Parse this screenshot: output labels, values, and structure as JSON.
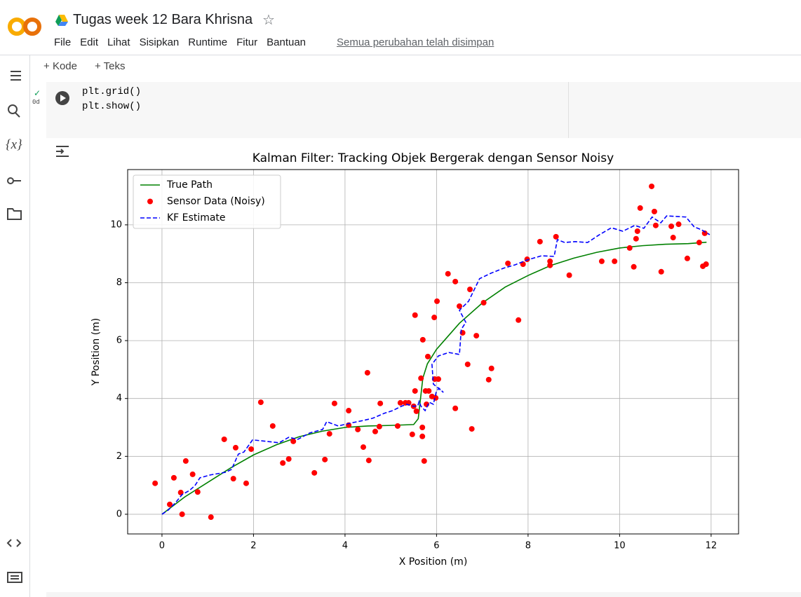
{
  "header": {
    "title": "Tugas week 12 Bara Khrisna",
    "menu": [
      "File",
      "Edit",
      "Lihat",
      "Sisipkan",
      "Runtime",
      "Fitur",
      "Bantuan"
    ],
    "save_status": "Semua perubahan telah disimpan"
  },
  "toolbar": {
    "add_code": "Kode",
    "add_text": "Teks"
  },
  "sidebar": {
    "variables_icon": "{x}"
  },
  "cell": {
    "exec_time": "0d",
    "code": [
      "plt.grid()",
      "plt.show()"
    ]
  },
  "chart_data": {
    "type": "line",
    "title": "Kalman Filter: Tracking Objek Bergerak dengan Sensor Noisy",
    "x_label": "X Position (m)",
    "y_label": "Y Position (m)",
    "xlim": [
      -0.75,
      12.6
    ],
    "ylim": [
      -0.68,
      11.91
    ],
    "xticks": [
      0,
      2,
      4,
      6,
      8,
      10,
      12
    ],
    "yticks": [
      0,
      2,
      4,
      6,
      8,
      10
    ],
    "grid": true,
    "legend": "upper left",
    "series": [
      {
        "name": "True Path",
        "type": "line",
        "color": "#008000",
        "x": [
          0,
          0.5,
          1,
          1.5,
          2,
          2.5,
          3,
          3.5,
          4,
          4.5,
          5,
          5.5,
          5.6,
          5.65,
          5.7,
          5.8,
          6,
          6.5,
          7,
          7.5,
          8,
          8.5,
          9,
          9.5,
          10,
          10.5,
          11,
          11.5,
          11.9
        ],
        "values": [
          0,
          0.6,
          1.1,
          1.6,
          2.05,
          2.4,
          2.68,
          2.87,
          3.0,
          3.05,
          3.07,
          3.1,
          3.3,
          4,
          4.7,
          5.2,
          5.7,
          6.6,
          7.3,
          7.85,
          8.25,
          8.6,
          8.85,
          9.05,
          9.2,
          9.28,
          9.33,
          9.35,
          9.4
        ]
      },
      {
        "name": "Sensor Data (Noisy)",
        "type": "scatter",
        "color": "#ff0000",
        "x": [
          -0.15,
          0.17,
          0.26,
          0.41,
          0.44,
          0.52,
          0.67,
          0.78,
          1.07,
          1.36,
          1.56,
          1.61,
          1.84,
          1.95,
          2.16,
          2.42,
          2.64,
          2.77,
          2.87,
          3.33,
          3.56,
          3.66,
          3.77,
          4.08,
          4.08,
          4.28,
          4.4,
          4.49,
          4.52,
          4.66,
          4.77,
          4.75,
          5.15,
          5.21,
          5.32,
          5.39,
          5.47,
          5.5,
          5.53,
          5.53,
          5.56,
          5.66,
          5.69,
          5.69,
          5.7,
          5.73,
          5.76,
          5.78,
          5.81,
          5.83,
          5.9,
          5.95,
          5.96,
          6.01,
          6.04,
          5.98,
          6.25,
          6.41,
          6.41,
          6.5,
          6.57,
          6.68,
          6.73,
          6.77,
          6.87,
          7.03,
          7.14,
          7.2,
          7.56,
          7.79,
          7.89,
          7.98,
          8.26,
          8.48,
          8.48,
          8.61,
          8.9,
          9.61,
          9.89,
          10.22,
          10.31,
          10.36,
          10.39,
          10.45,
          10.7,
          10.76,
          10.79,
          10.91,
          11.13,
          11.17,
          11.29,
          11.48,
          11.74,
          11.82,
          11.86,
          11.89
        ],
        "values": [
          1.07,
          0.34,
          1.26,
          0.75,
          0.0,
          1.84,
          1.38,
          0.77,
          -0.1,
          2.59,
          1.23,
          2.3,
          1.07,
          2.25,
          3.87,
          3.05,
          1.77,
          1.91,
          2.52,
          1.43,
          1.89,
          2.78,
          3.83,
          3.58,
          3.08,
          2.93,
          2.32,
          4.89,
          1.86,
          2.86,
          3.83,
          3.03,
          3.05,
          3.85,
          3.85,
          3.85,
          2.76,
          3.73,
          6.88,
          4.26,
          3.56,
          4.7,
          3.0,
          2.69,
          6.03,
          1.84,
          4.26,
          3.8,
          5.45,
          4.26,
          4.07,
          6.8,
          4.67,
          7.36,
          4.67,
          4.02,
          8.31,
          3.66,
          8.04,
          7.19,
          6.27,
          5.18,
          7.77,
          2.95,
          6.17,
          7.31,
          4.65,
          5.04,
          8.67,
          6.71,
          8.64,
          8.81,
          9.42,
          8.74,
          8.6,
          9.59,
          8.26,
          8.74,
          8.74,
          9.2,
          8.55,
          9.52,
          9.78,
          10.58,
          11.33,
          10.46,
          9.98,
          8.38,
          9.95,
          9.56,
          10.02,
          8.84,
          9.39,
          8.57,
          9.71,
          8.64
        ]
      },
      {
        "name": "KF Estimate",
        "type": "line",
        "dashed": true,
        "color": "#0000ff",
        "x": [
          0,
          0.14,
          0.29,
          0.44,
          0.6,
          0.72,
          0.83,
          1.06,
          1.39,
          1.52,
          1.67,
          1.79,
          1.98,
          2.28,
          2.56,
          2.77,
          2.97,
          3.23,
          3.51,
          3.6,
          3.85,
          4.12,
          4.4,
          4.61,
          4.86,
          5.04,
          5.23,
          5.35,
          5.5,
          5.59,
          5.62,
          5.66,
          5.75,
          5.84,
          5.93,
          5.99,
          6.05,
          6.15,
          5.93,
          5.9,
          6.04,
          6.27,
          6.5,
          6.54,
          6.64,
          6.5,
          6.7,
          6.82,
          6.94,
          7.19,
          7.46,
          7.72,
          7.95,
          8.29,
          8.57,
          8.64,
          8.8,
          9.03,
          9.3,
          9.56,
          9.82,
          10.07,
          10.33,
          10.53,
          10.71,
          10.9,
          11.03,
          11.25,
          11.45,
          11.63,
          11.79,
          11.97
        ],
        "values": [
          0,
          0.15,
          0.39,
          0.68,
          0.82,
          0.99,
          1.26,
          1.36,
          1.45,
          1.55,
          2.08,
          2.15,
          2.57,
          2.52,
          2.47,
          2.66,
          2.59,
          2.81,
          2.93,
          3.2,
          3.05,
          3.15,
          3.24,
          3.32,
          3.49,
          3.58,
          3.73,
          3.8,
          3.73,
          3.75,
          3.9,
          3.73,
          3.58,
          3.87,
          3.8,
          4.21,
          4.36,
          4.21,
          4.5,
          5.18,
          5.47,
          5.59,
          5.52,
          6.39,
          6.63,
          7.05,
          7.36,
          7.75,
          8.14,
          8.33,
          8.5,
          8.62,
          8.77,
          8.93,
          8.91,
          9.49,
          9.39,
          9.42,
          9.39,
          9.66,
          9.9,
          9.78,
          9.98,
          9.88,
          10.27,
          10.07,
          10.31,
          10.29,
          10.27,
          9.93,
          9.83,
          9.66
        ]
      }
    ]
  }
}
